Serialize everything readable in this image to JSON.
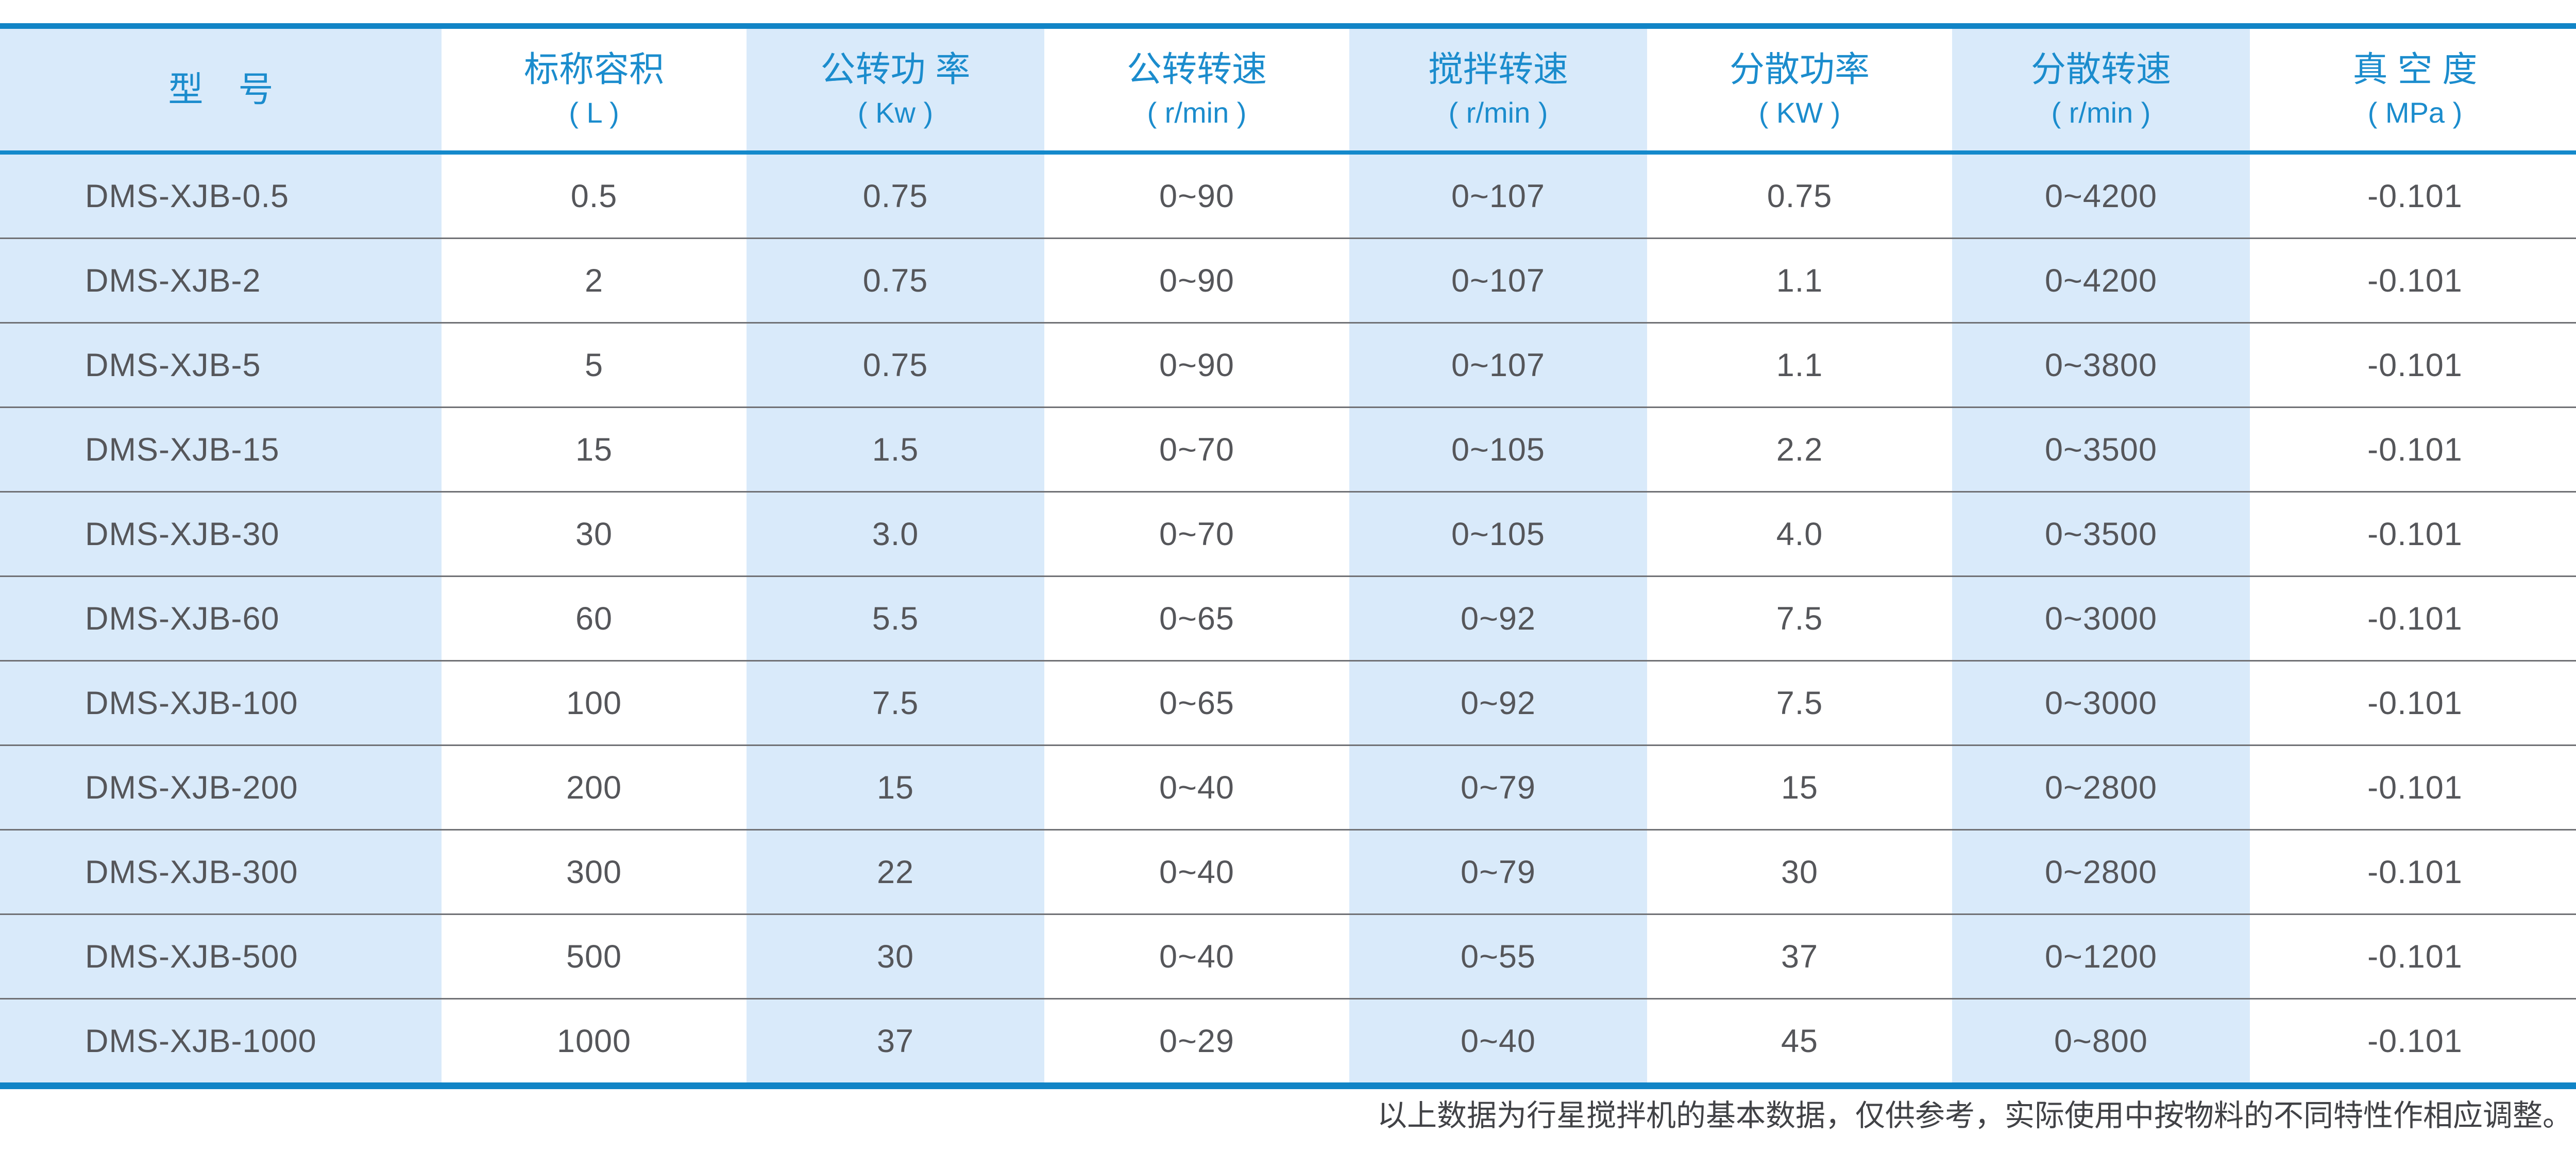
{
  "table": {
    "columns": [
      {
        "label": "型　号",
        "unit": ""
      },
      {
        "label": "标称容积",
        "unit": "( L )"
      },
      {
        "label": "公转功 率",
        "unit": "( Kw )"
      },
      {
        "label": "公转转速",
        "unit": "( r/min )"
      },
      {
        "label": "搅拌转速",
        "unit": "( r/min )"
      },
      {
        "label": "分散功率",
        "unit": "( KW )"
      },
      {
        "label": "分散转速",
        "unit": "( r/min )"
      },
      {
        "label": "真 空 度",
        "unit": "( MPa )"
      }
    ],
    "rows": [
      {
        "model": "DMS-XJB-0.5",
        "values": [
          "0.5",
          "0.75",
          "0~90",
          "0~107",
          "0.75",
          "0~4200",
          "-0.101"
        ]
      },
      {
        "model": "DMS-XJB-2",
        "values": [
          "2",
          "0.75",
          "0~90",
          "0~107",
          "1.1",
          "0~4200",
          "-0.101"
        ]
      },
      {
        "model": "DMS-XJB-5",
        "values": [
          "5",
          "0.75",
          "0~90",
          "0~107",
          "1.1",
          "0~3800",
          "-0.101"
        ]
      },
      {
        "model": "DMS-XJB-15",
        "values": [
          "15",
          "1.5",
          "0~70",
          "0~105",
          "2.2",
          "0~3500",
          "-0.101"
        ]
      },
      {
        "model": "DMS-XJB-30",
        "values": [
          "30",
          "3.0",
          "0~70",
          "0~105",
          "4.0",
          "0~3500",
          "-0.101"
        ]
      },
      {
        "model": "DMS-XJB-60",
        "values": [
          "60",
          "5.5",
          "0~65",
          "0~92",
          "7.5",
          "0~3000",
          "-0.101"
        ]
      },
      {
        "model": "DMS-XJB-100",
        "values": [
          "100",
          "7.5",
          "0~65",
          "0~92",
          "7.5",
          "0~3000",
          "-0.101"
        ]
      },
      {
        "model": "DMS-XJB-200",
        "values": [
          "200",
          "15",
          "0~40",
          "0~79",
          "15",
          "0~2800",
          "-0.101"
        ]
      },
      {
        "model": "DMS-XJB-300",
        "values": [
          "300",
          "22",
          "0~40",
          "0~79",
          "30",
          "0~2800",
          "-0.101"
        ]
      },
      {
        "model": "DMS-XJB-500",
        "values": [
          "500",
          "30",
          "0~40",
          "0~55",
          "37",
          "0~1200",
          "-0.101"
        ]
      },
      {
        "model": "DMS-XJB-1000",
        "values": [
          "1000",
          "37",
          "0~29",
          "0~40",
          "45",
          "0~800",
          "-0.101"
        ]
      }
    ]
  },
  "footer": {
    "note": "以上数据为行星搅拌机的基本数据，仅供参考，实际使用中按物料的不同特性作相应调整。"
  },
  "colors": {
    "accent_blue": "#1184c6",
    "header_text_blue": "#1b8ccd",
    "shaded_column_bg": "#d9eafa",
    "data_text": "#55565a",
    "row_separator": "#707175",
    "footer_text": "#414246"
  }
}
